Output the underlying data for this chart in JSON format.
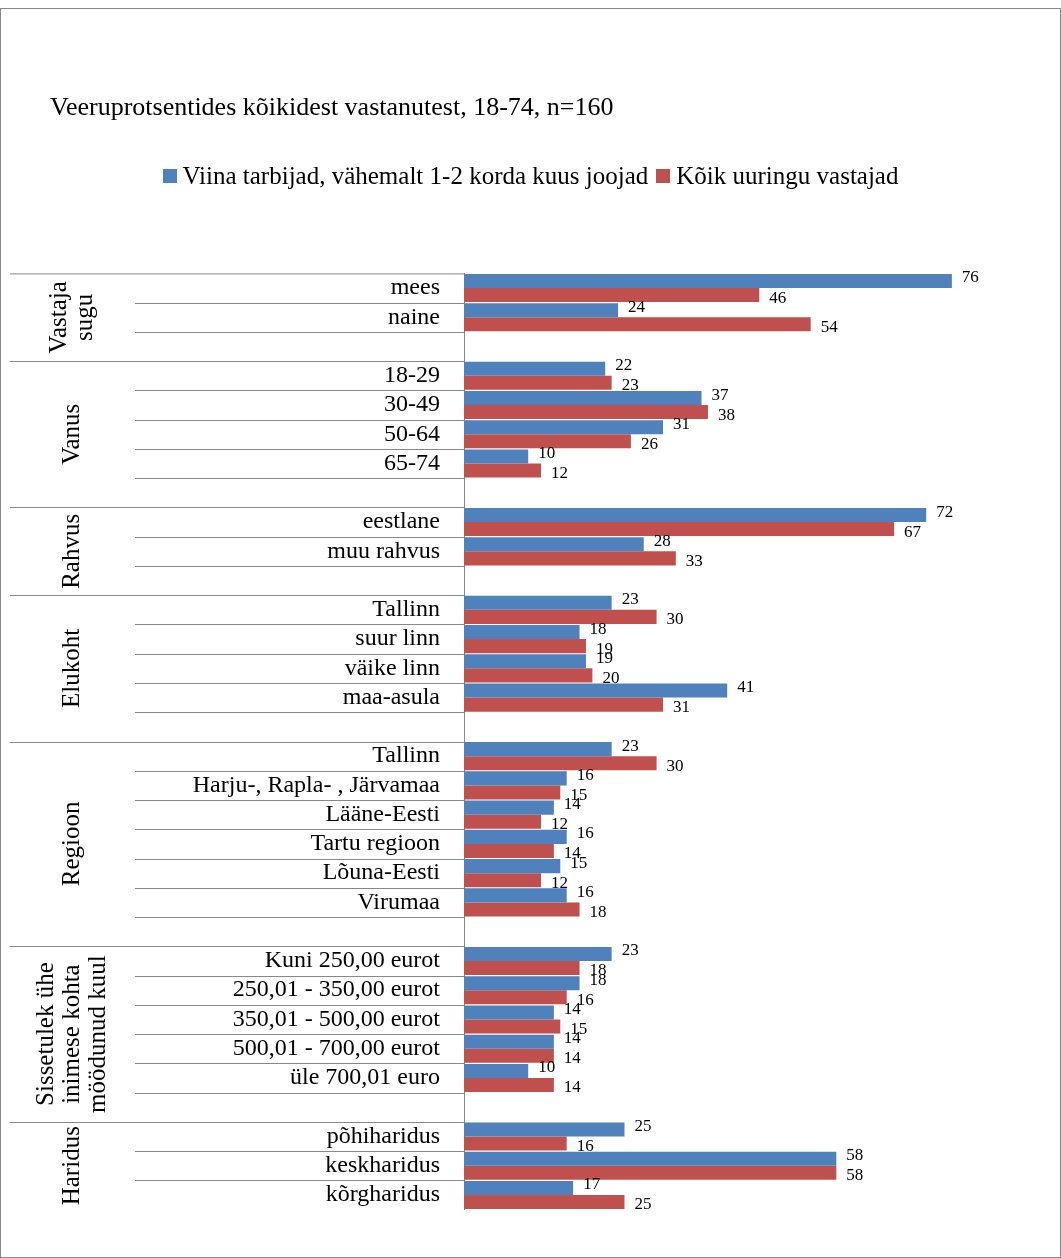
{
  "chart_data": {
    "type": "bar",
    "orientation": "horizontal",
    "title": "Veeruprotsentides kõikidest vastanutest, 18-74, n=160",
    "categories": [
      "mees",
      "naine",
      null,
      "18-29",
      "30-49",
      "50-64",
      "65-74",
      null,
      "eestlane",
      "muu rahvus",
      null,
      "Tallinn",
      "suur linn",
      "väike linn",
      "maa-asula",
      null,
      "Tallinn",
      "Harju-, Rapla- , Järvamaa",
      "Lääne-Eesti",
      "Tartu regioon",
      "Lõuna-Eesti",
      "Virumaa",
      null,
      "Kuni 250,00 eurot",
      "250,01 - 350,00 eurot",
      "350,01 - 500,00 eurot",
      "500,01 - 700,00 eurot",
      "üle 700,01 euro",
      null,
      "põhiharidus",
      "keskharidus",
      "kõrgharidus"
    ],
    "series": [
      {
        "name": "Viina tarbijad, vähemalt 1-2 korda kuus joojad",
        "color": "#4f81bd",
        "values": [
          76,
          24,
          null,
          22,
          37,
          31,
          10,
          null,
          72,
          28,
          null,
          23,
          18,
          19,
          41,
          null,
          23,
          16,
          14,
          16,
          15,
          16,
          null,
          23,
          18,
          14,
          14,
          10,
          null,
          25,
          58,
          17
        ]
      },
      {
        "name": "Kõik uuringu vastajad",
        "color": "#c0504d",
        "values": [
          46,
          54,
          null,
          23,
          38,
          26,
          12,
          null,
          67,
          33,
          null,
          30,
          19,
          20,
          31,
          null,
          30,
          15,
          12,
          14,
          12,
          18,
          null,
          18,
          16,
          15,
          14,
          14,
          null,
          16,
          58,
          25
        ]
      }
    ],
    "annotations": [
      "Vastaja sugu",
      "Vanus",
      "Rahvus",
      "Elukoht",
      "Regioon",
      "Sissetulek ühe inimese kohta möödunud kuul",
      "Haridus"
    ],
    "xlim": [
      0,
      93
    ],
    "data_labels": true,
    "legend": "top",
    "grid": false
  }
}
